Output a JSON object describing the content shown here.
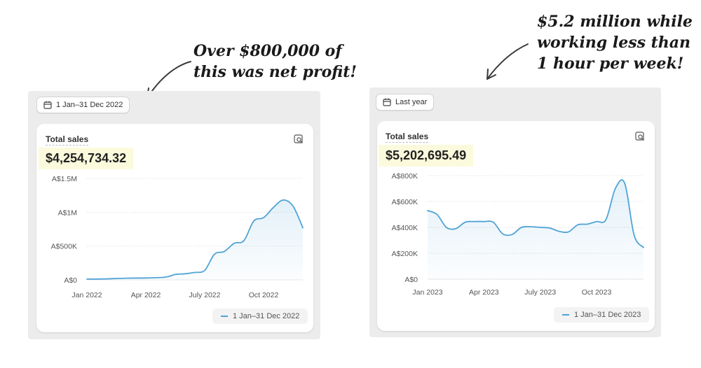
{
  "annotations": {
    "left": [
      "Over $800,000 of",
      "this was net profit!"
    ],
    "right": [
      "$5.2 million while",
      "working less than",
      "1 hour per week!"
    ]
  },
  "colors": {
    "line": "#4fa3d6",
    "highlight": "#fbfadc",
    "panel": "#ececec"
  },
  "panels": [
    {
      "date_button": {
        "icon": "calendar-icon",
        "label": "1 Jan–31 Dec 2022"
      },
      "card": {
        "title": "Total sales",
        "value": "$4,254,734.32",
        "insight_icon": "chart-search-icon",
        "legend": "1 Jan–31 Dec 2022"
      },
      "chart_data": {
        "type": "area",
        "title": "Total sales",
        "y_ticks": [
          "A$0",
          "A$500K",
          "A$1M",
          "A$1.5M"
        ],
        "y_tick_values": [
          0,
          500000,
          1000000,
          1500000
        ],
        "x_ticks": [
          "Jan 2022",
          "Apr 2022",
          "July 2022",
          "Oct 2022"
        ],
        "x_tick_positions": [
          0,
          3,
          6,
          9
        ],
        "ylim": [
          0,
          1500000
        ],
        "xlim": [
          0,
          11
        ],
        "series": [
          {
            "name": "1 Jan–31 Dec 2022",
            "x": [
              0,
              1,
              2,
              3,
              4,
              4.5,
              5,
              5.5,
              6,
              6.5,
              7,
              7.5,
              8,
              8.5,
              9,
              9.5,
              10,
              10.5,
              11
            ],
            "values": [
              10000,
              15000,
              25000,
              28000,
              40000,
              80000,
              90000,
              110000,
              140000,
              380000,
              420000,
              540000,
              580000,
              870000,
              920000,
              1070000,
              1180000,
              1090000,
              770000
            ]
          }
        ],
        "grid": true,
        "legend_position": "bottom-right"
      }
    },
    {
      "date_button": {
        "icon": "calendar-icon",
        "label": "Last year"
      },
      "card": {
        "title": "Total sales",
        "value": "$5,202,695.49",
        "insight_icon": "chart-search-icon",
        "legend": "1 Jan–31 Dec 2023"
      },
      "chart_data": {
        "type": "area",
        "title": "Total sales",
        "y_ticks": [
          "A$0",
          "A$200K",
          "A$400K",
          "A$600K",
          "A$800K"
        ],
        "y_tick_values": [
          0,
          200000,
          400000,
          600000,
          800000
        ],
        "x_ticks": [
          "Jan 2023",
          "Apr 2023",
          "July 2023",
          "Oct 2023"
        ],
        "x_tick_positions": [
          0,
          3,
          6,
          9
        ],
        "ylim": [
          0,
          800000
        ],
        "xlim": [
          0,
          11.5
        ],
        "series": [
          {
            "name": "1 Jan–31 Dec 2023",
            "x": [
              0,
              0.5,
              1,
              1.5,
              2,
              2.5,
              3,
              3.5,
              4,
              4.5,
              5,
              5.5,
              6,
              6.5,
              7,
              7.5,
              8,
              8.5,
              9,
              9.5,
              10,
              10.5,
              11,
              11.5
            ],
            "values": [
              530000,
              500000,
              400000,
              390000,
              440000,
              445000,
              445000,
              440000,
              350000,
              345000,
              400000,
              405000,
              400000,
              395000,
              370000,
              365000,
              420000,
              425000,
              445000,
              460000,
              700000,
              740000,
              340000,
              245000
            ]
          }
        ],
        "grid": true,
        "legend_position": "bottom-right"
      }
    }
  ]
}
